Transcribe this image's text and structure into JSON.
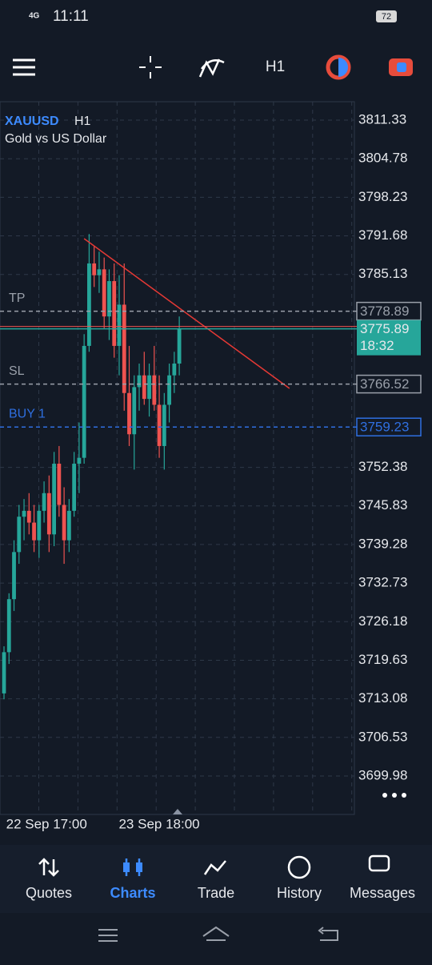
{
  "status_bar": {
    "network": "4G",
    "time": "11:11",
    "battery": "72"
  },
  "toolbar": {
    "timeframe": "H1"
  },
  "chart_data": {
    "type": "candlestick",
    "symbol": "XAUUSD",
    "timeframe": "H1",
    "description": "Gold vs US Dollar",
    "up_color": "#26a69a",
    "down_color": "#ef5350",
    "grid": true,
    "ylim": [
      3693.45,
      3814.46
    ],
    "yticks": [
      3811.33,
      3804.78,
      3798.23,
      3791.68,
      3785.13,
      3752.38,
      3745.83,
      3739.28,
      3732.73,
      3726.18,
      3719.63,
      3713.08,
      3706.53,
      3699.98
    ],
    "xticks": [
      {
        "value": 8.5,
        "label": "22 Sep 17:00"
      },
      {
        "value": 31,
        "label": "23 Sep 18:00"
      }
    ],
    "ohlc": [
      [
        3714,
        3722,
        3713,
        3721
      ],
      [
        3721,
        3731,
        3719,
        3730
      ],
      [
        3730,
        3740,
        3728,
        3738
      ],
      [
        3738,
        3746,
        3736,
        3744
      ],
      [
        3744,
        3747,
        3740,
        3745
      ],
      [
        3745,
        3748,
        3741,
        3743
      ],
      [
        3743,
        3746,
        3738,
        3740
      ],
      [
        3740,
        3746,
        3737,
        3745
      ],
      [
        3745,
        3750,
        3743,
        3748
      ],
      [
        3748,
        3751,
        3738,
        3741
      ],
      [
        3741,
        3755,
        3739,
        3753
      ],
      [
        3753,
        3756,
        3744,
        3746
      ],
      [
        3746,
        3749,
        3736,
        3740
      ],
      [
        3740,
        3747,
        3738,
        3745
      ],
      [
        3745,
        3755,
        3744,
        3753
      ],
      [
        3753,
        3760,
        3748,
        3754
      ],
      [
        3754,
        3775,
        3753,
        3773
      ],
      [
        3773,
        3792,
        3772,
        3787
      ],
      [
        3787,
        3790,
        3783,
        3785
      ],
      [
        3785,
        3789,
        3782,
        3786
      ],
      [
        3786,
        3788,
        3776,
        3778
      ],
      [
        3778,
        3786,
        3774,
        3784
      ],
      [
        3784,
        3787,
        3771,
        3773
      ],
      [
        3773,
        3785,
        3768,
        3780
      ],
      [
        3780,
        3787,
        3762,
        3765
      ],
      [
        3765,
        3773,
        3756,
        3758
      ],
      [
        3758,
        3768,
        3752,
        3766
      ],
      [
        3766,
        3770,
        3762,
        3768
      ],
      [
        3768,
        3772,
        3763,
        3764
      ],
      [
        3764,
        3770,
        3761,
        3768
      ],
      [
        3768,
        3773,
        3762,
        3763
      ],
      [
        3763,
        3768,
        3754,
        3756
      ],
      [
        3756,
        3765,
        3752,
        3763
      ],
      [
        3763,
        3770,
        3760,
        3768
      ],
      [
        3768,
        3772,
        3765,
        3770
      ],
      [
        3770,
        3778,
        3768,
        3775.89
      ]
    ],
    "trendline": {
      "x": [
        16,
        57
      ],
      "y": [
        3791.21,
        3765.78
      ],
      "color": "#e53935"
    },
    "levels": [
      {
        "name": "TP",
        "value": 3778.89,
        "color": "#9aa0aa"
      },
      {
        "name": "SL",
        "value": 3766.52,
        "color": "#9aa0aa"
      },
      {
        "name": "BUY 1",
        "value": 3759.23,
        "color": "#2f6fe0"
      }
    ],
    "current": {
      "value": 3775.89,
      "timer": "18:32",
      "color": "#26a69a"
    }
  },
  "nav": [
    {
      "label": "Quotes"
    },
    {
      "label": "Charts"
    },
    {
      "label": "Trade"
    },
    {
      "label": "History"
    },
    {
      "label": "Messages"
    }
  ]
}
